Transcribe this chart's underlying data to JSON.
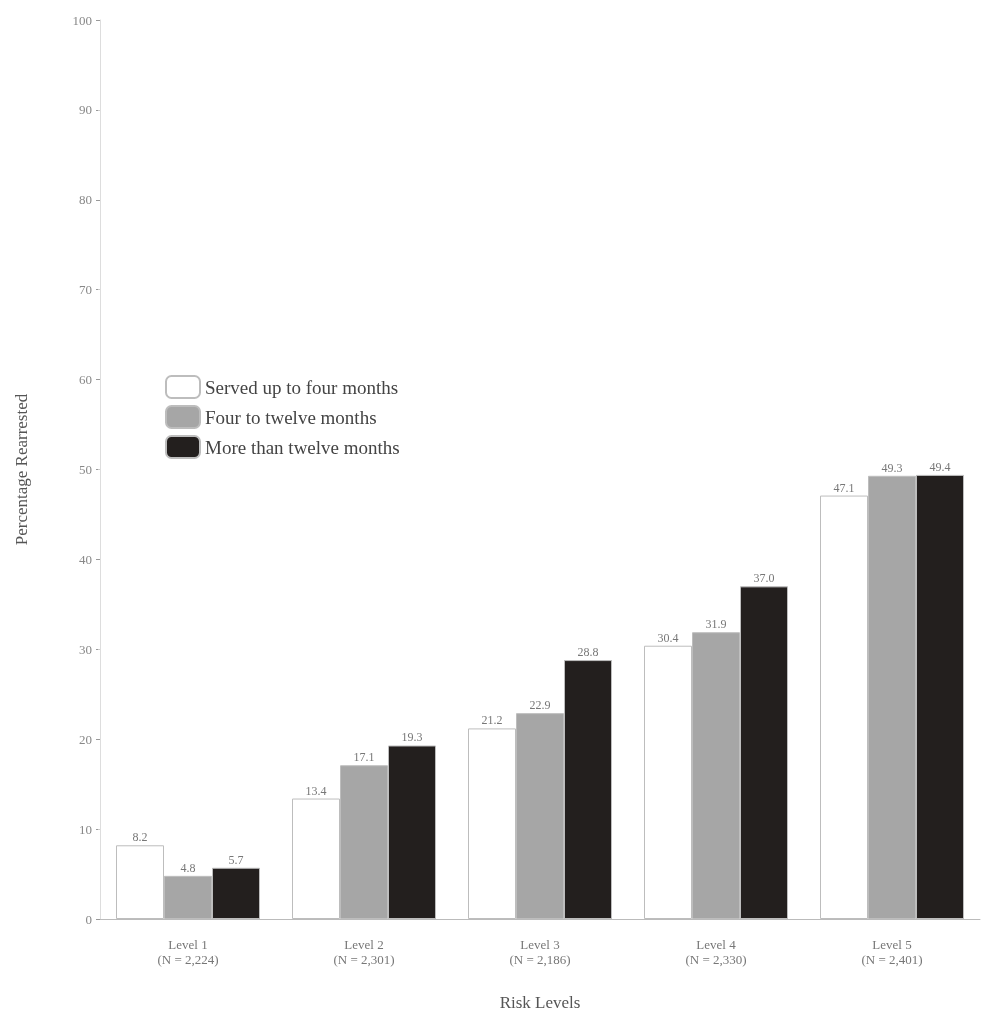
{
  "chart_data": {
    "type": "bar",
    "xlabel": "Risk Levels",
    "ylabel": "Percentage Rearrested",
    "categories": [
      "Level 1\n(N = 2,224)",
      "Level 2\n(N = 2,301)",
      "Level 3\n(N = 2,186)",
      "Level 4\n(N = 2,330)",
      "Level 5\n(N = 2,401)"
    ],
    "series": [
      {
        "name": "Served up to four months",
        "color": "#ffffff",
        "values": [
          8.2,
          13.4,
          21.2,
          30.4,
          47.1
        ],
        "value_labels": [
          "8.2",
          "13.4",
          "21.2",
          "30.4",
          "47.1"
        ]
      },
      {
        "name": "Four to twelve months",
        "color": "#a6a6a6",
        "values": [
          4.8,
          17.1,
          22.9,
          31.9,
          49.3
        ],
        "value_labels": [
          "4.8",
          "17.1",
          "22.9",
          "31.9",
          "49.3"
        ]
      },
      {
        "name": "More than twelve months",
        "color": "#231f1e",
        "values": [
          5.7,
          19.3,
          28.8,
          37.0,
          49.4
        ],
        "value_labels": [
          "5.7",
          "19.3",
          "28.8",
          "37.0",
          "49.4"
        ]
      }
    ],
    "ylim": [
      0,
      100
    ],
    "yticks": [
      0,
      10,
      20,
      30,
      40,
      50,
      60,
      70,
      80,
      90,
      100
    ],
    "grid": false,
    "legend": "top left"
  }
}
